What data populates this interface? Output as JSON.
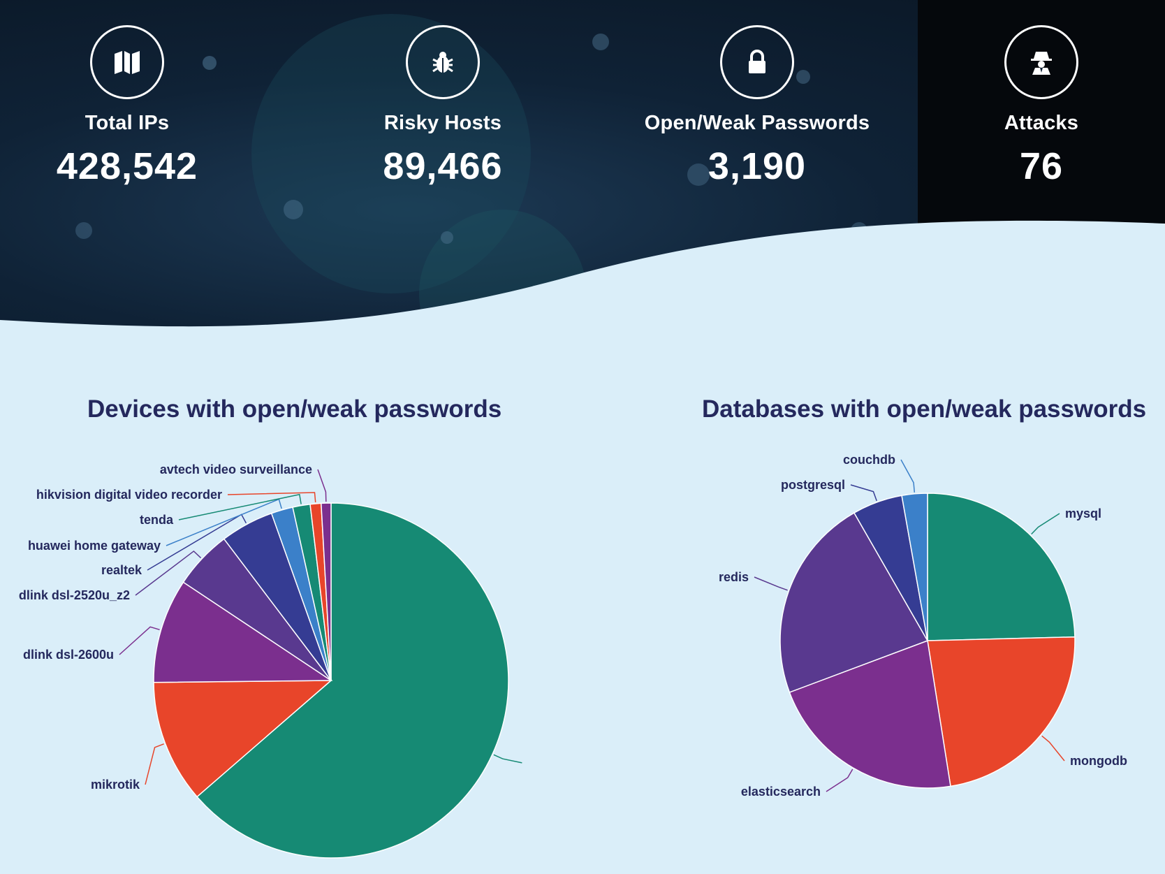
{
  "stats": [
    {
      "label": "Total IPs",
      "value": "428,542",
      "icon": "map-icon"
    },
    {
      "label": "Risky Hosts",
      "value": "89,466",
      "icon": "bug-icon"
    },
    {
      "label": "Open/Weak Passwords",
      "value": "3,190",
      "icon": "lock-icon"
    },
    {
      "label": "Attacks",
      "value": "76",
      "icon": "spy-icon"
    }
  ],
  "colors": {
    "teal": "#168a74",
    "red": "#e8452a",
    "purple": "#7b2f8e",
    "violet": "#59398f",
    "indigo": "#353c93",
    "blue": "#3b80c9",
    "title": "#24285d"
  },
  "chart_data": [
    {
      "type": "pie",
      "title": "Devices with open/weak passwords",
      "slices": [
        {
          "label": "",
          "value": 64.2,
          "color": "#168a74"
        },
        {
          "label": "mikrotik",
          "value": 11.3,
          "color": "#e8452a"
        },
        {
          "label": "dlink dsl-2600u",
          "value": 9.6,
          "color": "#7b2f8e"
        },
        {
          "label": "dlink dsl-2520u_z2",
          "value": 5.4,
          "color": "#59398f"
        },
        {
          "label": "realtek",
          "value": 4.9,
          "color": "#353c93"
        },
        {
          "label": "huawei home gateway",
          "value": 2.0,
          "color": "#3b80c9"
        },
        {
          "label": "tenda",
          "value": 1.6,
          "color": "#168a74"
        },
        {
          "label": "hikvision digital video recorder",
          "value": 1.0,
          "color": "#e8452a"
        },
        {
          "label": "avtech video surveillance",
          "value": 0.9,
          "color": "#7b2f8e"
        }
      ]
    },
    {
      "type": "pie",
      "title": "Databases with open/weak passwords",
      "slices": [
        {
          "label": "mysql",
          "value": 24.6,
          "color": "#168a74"
        },
        {
          "label": "mongodb",
          "value": 22.9,
          "color": "#e8452a"
        },
        {
          "label": "elasticsearch",
          "value": 21.8,
          "color": "#7b2f8e"
        },
        {
          "label": "redis",
          "value": 22.4,
          "color": "#59398f"
        },
        {
          "label": "postgresql",
          "value": 5.5,
          "color": "#353c93"
        },
        {
          "label": "couchdb",
          "value": 2.8,
          "color": "#3b80c9"
        }
      ]
    }
  ]
}
